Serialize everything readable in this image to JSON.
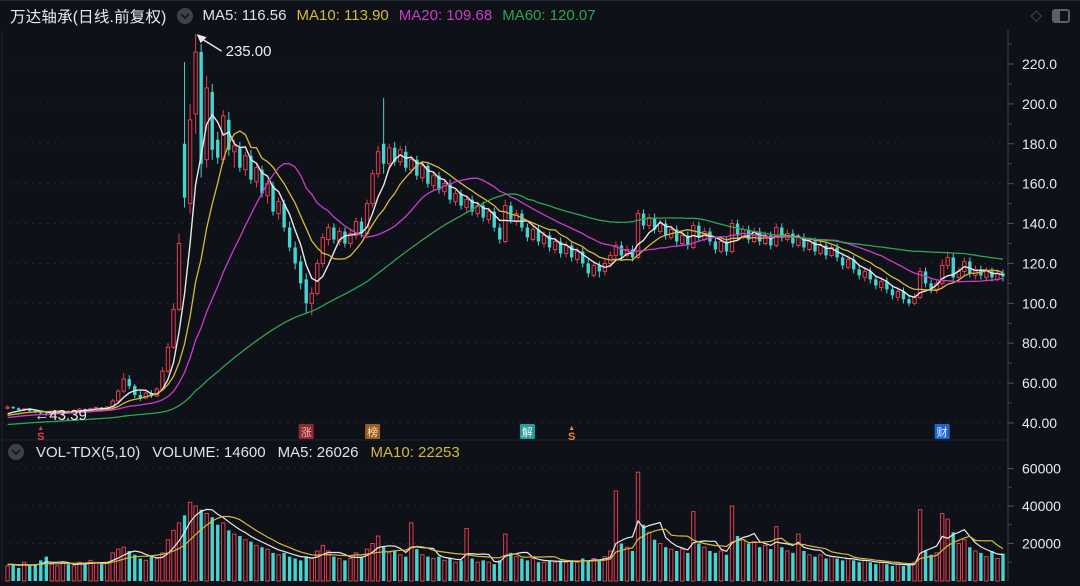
{
  "header": {
    "title": "万达轴承(日线.前复权)",
    "ma5": "MA5: 116.56",
    "ma10": "MA10: 113.90",
    "ma20": "MA20: 109.68",
    "ma60": "MA60: 120.07"
  },
  "volume_header": {
    "indicator": "VOL-TDX(5,10)",
    "volume": "VOLUME: 14600",
    "ma5": "MA5: 26026",
    "ma10": "MA10: 22253"
  },
  "icons": {
    "diamond": "◇"
  },
  "colors": {
    "background": "#0e1117",
    "up": "#e23d4f",
    "down": "#45d5d0",
    "candle_fill": "#0e1117",
    "ma5": "#e8e8e8",
    "ma10": "#d6b93c",
    "ma20": "#cb3ccb",
    "ma60": "#2fa452",
    "axis_text": "#e9ecf2",
    "grid": "#272c39"
  },
  "chart_data": {
    "type": "candlestick_with_volume",
    "title": "万达轴承(日线.前复权)",
    "legend": [
      "MA5",
      "MA10",
      "MA20",
      "MA60"
    ],
    "price_axis": {
      "ticks": [
        {
          "label": "220.0",
          "value": 220
        },
        {
          "label": "200.0",
          "value": 200
        },
        {
          "label": "180.0",
          "value": 180
        },
        {
          "label": "160.0",
          "value": 160
        },
        {
          "label": "140.0",
          "value": 140
        },
        {
          "label": "120.0",
          "value": 120
        },
        {
          "label": "100.0",
          "value": 100
        },
        {
          "label": "80.00",
          "value": 80
        },
        {
          "label": "60.00",
          "value": 60
        },
        {
          "label": "40.00",
          "value": 40
        }
      ],
      "range": [
        40,
        240
      ]
    },
    "volume_axis": {
      "ticks": [
        {
          "label": "60000",
          "value": 60000
        },
        {
          "label": "40000",
          "value": 40000
        },
        {
          "label": "20000",
          "value": 20000
        }
      ],
      "range": [
        0,
        66000
      ]
    },
    "ma_lines": [
      {
        "label": "MA5",
        "period": 5,
        "color": "#e8e8e8",
        "width": 1.4
      },
      {
        "label": "MA10",
        "period": 10,
        "color": "#d6b93c",
        "width": 1.3
      },
      {
        "label": "MA20",
        "period": 20,
        "color": "#cb3ccb",
        "width": 1.3
      },
      {
        "label": "MA60",
        "period": 60,
        "color": "#2fa452",
        "width": 1.3
      }
    ],
    "volume_ma_lines": [
      {
        "label": "MA5",
        "period": 5,
        "color": "#e8e8e8"
      },
      {
        "label": "MA10",
        "period": 10,
        "color": "#d6b93c"
      }
    ],
    "annotations": [
      {
        "text": "235.00",
        "anchor_index": 34,
        "anchor_price": 235,
        "type": "peak-callout"
      },
      {
        "text": "←43.39",
        "anchor_index": 7,
        "anchor_price": 43.39,
        "type": "low-callout"
      }
    ],
    "event_markers": [
      {
        "index": 6,
        "glyph": "S",
        "style": "arrow-s",
        "color": "#e23d4f",
        "name": "dividend-marker-red"
      },
      {
        "index": 54,
        "glyph": "涨",
        "style": "badge",
        "bg": "#8e2a2e",
        "fg": "#f2b8b8",
        "name": "limit-up-marker"
      },
      {
        "index": 66,
        "glyph": "榜",
        "style": "badge",
        "bg": "#9c5c1e",
        "fg": "#f5dfc0",
        "name": "ranking-list-marker"
      },
      {
        "index": 94,
        "glyph": "解",
        "style": "badge",
        "bg": "#279c90",
        "fg": "#eafaf8",
        "name": "unlock-marker"
      },
      {
        "index": 102,
        "glyph": "S",
        "style": "arrow-s",
        "color": "#e8843e",
        "name": "dividend-marker-orange"
      },
      {
        "index": 169,
        "glyph": "财",
        "style": "badge",
        "bg": "#1f66cc",
        "fg": "#eaf2ff",
        "name": "financial-report-marker"
      }
    ],
    "render_hints": {
      "pre_window_close_start": 34,
      "pre_window_close_end": 44,
      "pre_window_volume": 9000
    },
    "candles": [
      [
        47.5,
        48.8,
        46.8,
        48
      ],
      [
        48,
        48.5,
        46.9,
        47.5
      ],
      [
        47.4,
        47.8,
        46,
        46.5
      ],
      [
        46.4,
        47.6,
        45.9,
        47
      ],
      [
        47,
        47.3,
        45.4,
        46
      ],
      [
        46,
        46.4,
        44.8,
        45.5
      ],
      [
        45.4,
        46,
        44.2,
        44.8
      ],
      [
        44.8,
        45.2,
        43.39,
        44.2
      ],
      [
        44.2,
        45.3,
        43.8,
        44.8
      ],
      [
        44.8,
        46,
        44.3,
        45.5
      ],
      [
        45.5,
        46.4,
        44.9,
        46
      ],
      [
        46,
        46.3,
        45,
        45.6
      ],
      [
        45.5,
        46.8,
        45.2,
        46.2
      ],
      [
        46.2,
        47.5,
        45.8,
        47
      ],
      [
        47,
        47.3,
        46,
        46.5
      ],
      [
        46.4,
        47.7,
        46,
        47.2
      ],
      [
        47.2,
        48.3,
        46.8,
        47.8
      ],
      [
        47.8,
        48,
        46.9,
        47.4
      ],
      [
        47.3,
        48.5,
        47,
        48
      ],
      [
        48,
        52,
        47.6,
        51
      ],
      [
        51,
        57,
        50.5,
        56
      ],
      [
        56,
        65,
        55,
        62
      ],
      [
        62,
        64,
        57,
        58.5
      ],
      [
        58.5,
        59.5,
        52.5,
        54
      ],
      [
        54,
        56,
        51,
        52.5
      ],
      [
        52.5,
        56,
        52,
        55
      ],
      [
        55,
        56.5,
        52.5,
        53.5
      ],
      [
        53.5,
        58,
        53,
        57
      ],
      [
        57,
        68,
        56,
        66
      ],
      [
        66,
        80,
        65,
        78
      ],
      [
        78,
        100,
        77,
        97
      ],
      [
        97,
        135,
        96,
        130
      ],
      [
        180,
        221,
        148,
        153
      ],
      [
        150,
        200,
        145,
        192
      ],
      [
        195,
        235,
        185,
        226
      ],
      [
        226,
        230,
        163,
        170
      ],
      [
        172,
        214,
        168,
        208
      ],
      [
        206,
        210,
        172,
        177
      ],
      [
        182,
        186,
        170,
        173
      ],
      [
        172,
        197,
        170,
        194
      ],
      [
        192,
        196,
        174,
        177
      ],
      [
        176,
        182,
        168,
        179
      ],
      [
        178,
        181,
        166,
        168
      ],
      [
        167,
        176,
        164,
        174
      ],
      [
        174,
        177,
        160,
        162
      ],
      [
        161,
        170,
        158,
        168
      ],
      [
        167,
        169,
        153,
        155
      ],
      [
        154,
        162,
        150,
        160
      ],
      [
        159,
        161,
        144,
        146
      ],
      [
        145,
        153,
        142,
        151
      ],
      [
        150,
        152,
        136,
        138
      ],
      [
        138,
        141,
        126,
        128
      ],
      [
        128,
        131,
        117,
        120
      ],
      [
        121,
        124,
        107,
        110
      ],
      [
        112,
        115,
        95,
        100
      ],
      [
        100,
        108,
        94,
        105
      ],
      [
        105,
        122,
        104,
        120
      ],
      [
        120,
        135,
        118,
        133
      ],
      [
        132,
        140,
        129,
        138
      ],
      [
        138,
        140,
        130,
        132
      ],
      [
        131,
        138,
        129,
        136
      ],
      [
        136,
        138,
        128,
        130
      ],
      [
        130,
        137,
        128,
        135
      ],
      [
        134,
        143,
        132,
        141
      ],
      [
        141,
        143,
        133,
        135
      ],
      [
        135,
        152,
        134,
        150
      ],
      [
        150,
        167,
        148,
        165
      ],
      [
        165,
        179,
        163,
        176
      ],
      [
        180,
        203,
        165,
        170
      ],
      [
        170,
        180,
        168,
        178
      ],
      [
        178,
        181,
        169,
        171
      ],
      [
        171,
        179,
        169,
        177
      ],
      [
        176,
        179,
        166,
        168
      ],
      [
        167,
        174,
        165,
        172
      ],
      [
        172,
        174,
        162,
        164
      ],
      [
        163,
        171,
        161,
        169
      ],
      [
        169,
        171,
        158,
        160
      ],
      [
        159,
        166,
        157,
        164
      ],
      [
        164,
        166,
        155,
        157
      ],
      [
        156,
        162,
        154,
        160
      ],
      [
        160,
        162,
        150,
        152
      ],
      [
        151,
        157,
        149,
        155
      ],
      [
        155,
        157,
        147,
        149
      ],
      [
        148,
        154,
        146,
        152
      ],
      [
        152,
        154,
        144,
        146
      ],
      [
        145,
        151,
        143,
        149
      ],
      [
        149,
        151,
        141,
        143
      ],
      [
        142,
        148,
        140,
        146
      ],
      [
        146,
        148,
        136,
        138
      ],
      [
        138,
        140,
        130,
        132
      ],
      [
        131,
        152,
        130,
        149
      ],
      [
        149,
        151,
        140,
        142
      ],
      [
        141,
        147,
        139,
        145
      ],
      [
        145,
        147,
        136,
        138
      ],
      [
        138,
        140,
        131,
        133
      ],
      [
        132,
        139,
        131,
        137
      ],
      [
        137,
        139,
        129,
        131
      ],
      [
        130,
        136,
        128,
        134
      ],
      [
        134,
        136,
        126,
        128
      ],
      [
        127,
        133,
        125,
        131
      ],
      [
        131,
        133,
        123,
        125
      ],
      [
        125,
        131,
        123,
        129
      ],
      [
        129,
        131,
        121,
        123
      ],
      [
        122,
        128,
        120,
        126
      ],
      [
        126,
        128,
        118,
        120
      ],
      [
        120,
        122,
        113,
        115
      ],
      [
        114,
        121,
        113,
        119
      ],
      [
        119,
        121,
        113,
        116
      ],
      [
        116,
        122,
        114,
        120
      ],
      [
        120,
        126,
        118,
        124
      ],
      [
        124,
        131,
        122,
        129
      ],
      [
        129,
        131,
        122,
        124
      ],
      [
        124,
        129,
        123,
        127
      ],
      [
        127,
        129,
        121,
        123
      ],
      [
        123,
        147,
        122,
        145
      ],
      [
        145,
        147,
        137,
        139
      ],
      [
        139,
        145,
        137,
        143
      ],
      [
        143,
        145,
        135,
        137
      ],
      [
        136,
        142,
        135,
        140
      ],
      [
        140,
        142,
        132,
        134
      ],
      [
        133,
        139,
        132,
        137
      ],
      [
        137,
        139,
        129,
        131
      ],
      [
        130,
        136,
        129,
        134
      ],
      [
        134,
        136,
        127,
        129
      ],
      [
        128,
        141,
        127,
        139
      ],
      [
        139,
        141,
        131,
        133
      ],
      [
        132,
        138,
        131,
        136
      ],
      [
        136,
        138,
        129,
        131
      ],
      [
        131,
        133,
        125,
        127
      ],
      [
        126,
        133,
        125,
        131
      ],
      [
        131,
        133,
        124,
        126
      ],
      [
        126,
        142,
        125,
        140
      ],
      [
        140,
        142,
        132,
        134
      ],
      [
        133,
        139,
        132,
        137
      ],
      [
        137,
        139,
        130,
        132
      ],
      [
        131,
        138,
        130,
        136
      ],
      [
        136,
        138,
        129,
        131
      ],
      [
        130,
        136,
        129,
        134
      ],
      [
        134,
        136,
        127,
        129
      ],
      [
        129,
        140,
        128,
        138
      ],
      [
        138,
        140,
        131,
        133
      ],
      [
        132,
        137,
        131,
        135
      ],
      [
        135,
        137,
        128,
        130
      ],
      [
        129,
        135,
        128,
        133
      ],
      [
        133,
        135,
        126,
        128
      ],
      [
        127,
        133,
        126,
        131
      ],
      [
        131,
        133,
        124,
        126
      ],
      [
        125,
        131,
        124,
        129
      ],
      [
        129,
        131,
        122,
        124
      ],
      [
        124,
        130,
        123,
        128
      ],
      [
        128,
        130,
        121,
        123
      ],
      [
        123,
        125,
        117,
        119
      ],
      [
        118,
        124,
        117,
        122
      ],
      [
        122,
        124,
        115,
        117
      ],
      [
        117,
        119,
        112,
        114
      ],
      [
        113,
        118,
        111,
        116
      ],
      [
        116,
        118,
        110,
        112
      ],
      [
        112,
        114,
        107,
        109
      ],
      [
        108,
        113,
        106,
        111
      ],
      [
        111,
        113,
        105,
        107
      ],
      [
        107,
        109,
        102,
        104
      ],
      [
        103,
        108,
        101,
        106
      ],
      [
        106,
        108,
        100,
        102
      ],
      [
        102,
        104,
        98.5,
        100
      ],
      [
        100,
        105,
        99,
        103
      ],
      [
        103,
        118,
        102,
        116
      ],
      [
        116,
        118,
        108,
        110
      ],
      [
        110,
        112,
        105,
        107
      ],
      [
        107,
        112,
        105,
        110
      ],
      [
        110,
        122,
        108,
        119
      ],
      [
        119,
        126,
        117,
        123
      ],
      [
        123,
        125,
        111,
        113
      ],
      [
        113,
        118,
        111,
        116
      ],
      [
        116,
        123,
        114,
        121
      ],
      [
        121,
        123,
        113,
        115
      ],
      [
        114,
        119,
        112,
        117
      ],
      [
        117,
        119,
        112,
        114
      ],
      [
        113,
        118,
        111,
        116
      ],
      [
        116,
        118,
        111,
        113
      ],
      [
        112,
        117,
        111,
        115
      ],
      [
        115,
        117,
        111,
        113.5
      ]
    ],
    "volumes": [
      8000,
      9000,
      7000,
      10000,
      8000,
      9000,
      11000,
      13000,
      9000,
      8000,
      10000,
      9000,
      8000,
      10000,
      9000,
      11000,
      10000,
      9000,
      10000,
      15000,
      17000,
      18000,
      16000,
      14000,
      12000,
      11000,
      13000,
      12000,
      15000,
      22000,
      27000,
      31000,
      35000,
      42000,
      40000,
      38000,
      36000,
      34000,
      30000,
      31000,
      27000,
      25000,
      24000,
      22000,
      21000,
      19000,
      18000,
      17000,
      15000,
      14000,
      15000,
      13000,
      12000,
      11000,
      13000,
      12000,
      16000,
      19000,
      16000,
      13000,
      12000,
      11000,
      12000,
      15000,
      13000,
      17000,
      20000,
      24000,
      18000,
      15000,
      16000,
      14000,
      13000,
      31000,
      17000,
      14000,
      13000,
      12000,
      13000,
      11000,
      12000,
      10000,
      11000,
      28000,
      12000,
      10000,
      11000,
      10000,
      9000,
      11000,
      25000,
      15000,
      13000,
      12000,
      11000,
      12000,
      10000,
      10000,
      11000,
      10000,
      11000,
      10000,
      11000,
      10000,
      12000,
      11000,
      12000,
      11000,
      13000,
      16000,
      48000,
      20000,
      18000,
      16000,
      58000,
      30000,
      26000,
      22000,
      20000,
      18000,
      17000,
      16000,
      17000,
      15000,
      37000,
      20000,
      18000,
      16000,
      15000,
      16000,
      14000,
      40000,
      24000,
      22000,
      20000,
      21000,
      18000,
      19000,
      17000,
      29000,
      18000,
      16000,
      15000,
      25000,
      16000,
      14000,
      13000,
      14000,
      12000,
      13000,
      12000,
      11000,
      12000,
      11000,
      10000,
      11000,
      10000,
      9000,
      10000,
      9000,
      8000,
      9000,
      8000,
      9000,
      10000,
      38000,
      16000,
      14000,
      15000,
      36000,
      33000,
      26000,
      20000,
      22000,
      18000,
      16000,
      15000,
      13000,
      16000,
      12000,
      14600
    ]
  }
}
